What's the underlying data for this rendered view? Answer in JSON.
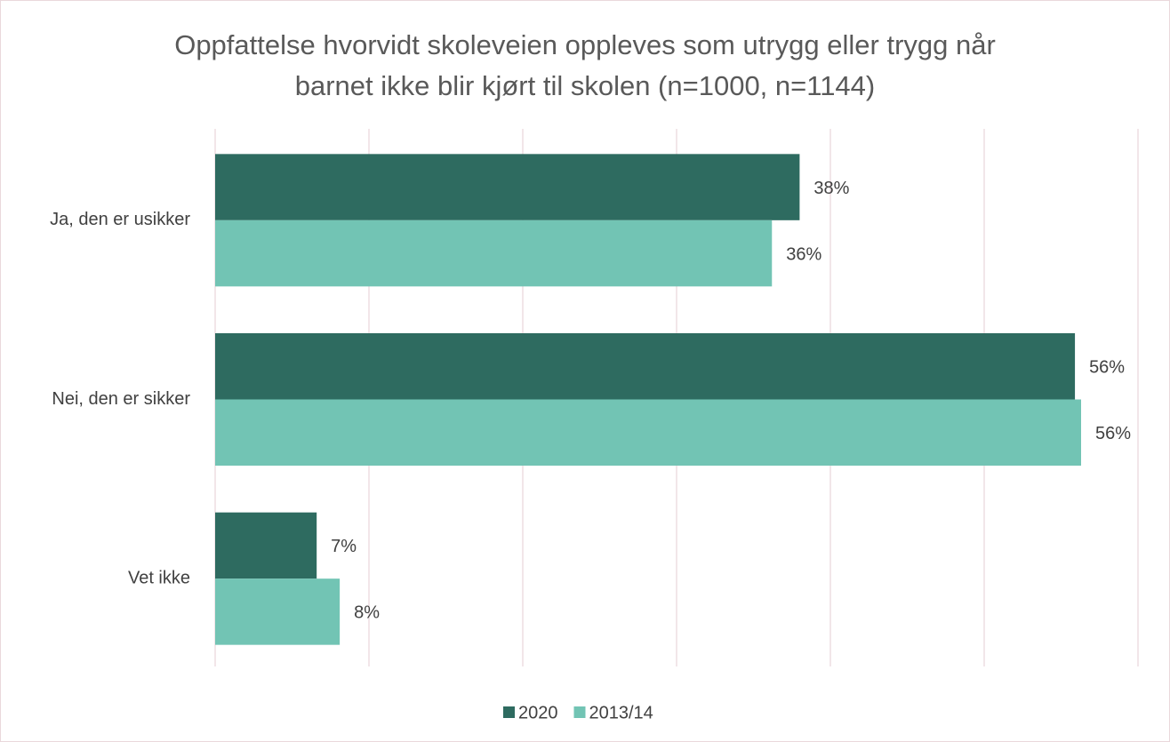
{
  "chart_data": {
    "type": "bar",
    "orientation": "horizontal",
    "title": "Oppfattelse hvorvidt skoleveien oppleves som utrygg eller trygg når barnet ikke blir kjørt til skolen (n=1000, n=1144)",
    "categories": [
      "Ja, den er usikker",
      "Nei, den er sikker",
      "Vet ikke"
    ],
    "series": [
      {
        "name": "2020",
        "color": "#2e6b60",
        "values": [
          38.0,
          55.9,
          6.6
        ],
        "value_labels": [
          "38%",
          "56%",
          "7%"
        ]
      },
      {
        "name": "2013/14",
        "color": "#72c4b4",
        "values": [
          36.2,
          56.3,
          8.1
        ],
        "value_labels": [
          "36%",
          "56%",
          "8%"
        ]
      }
    ],
    "xlim": [
      0,
      60
    ],
    "xticks": [
      0,
      10,
      20,
      30,
      40,
      50,
      60
    ],
    "grid": true,
    "legend": "bottom"
  }
}
